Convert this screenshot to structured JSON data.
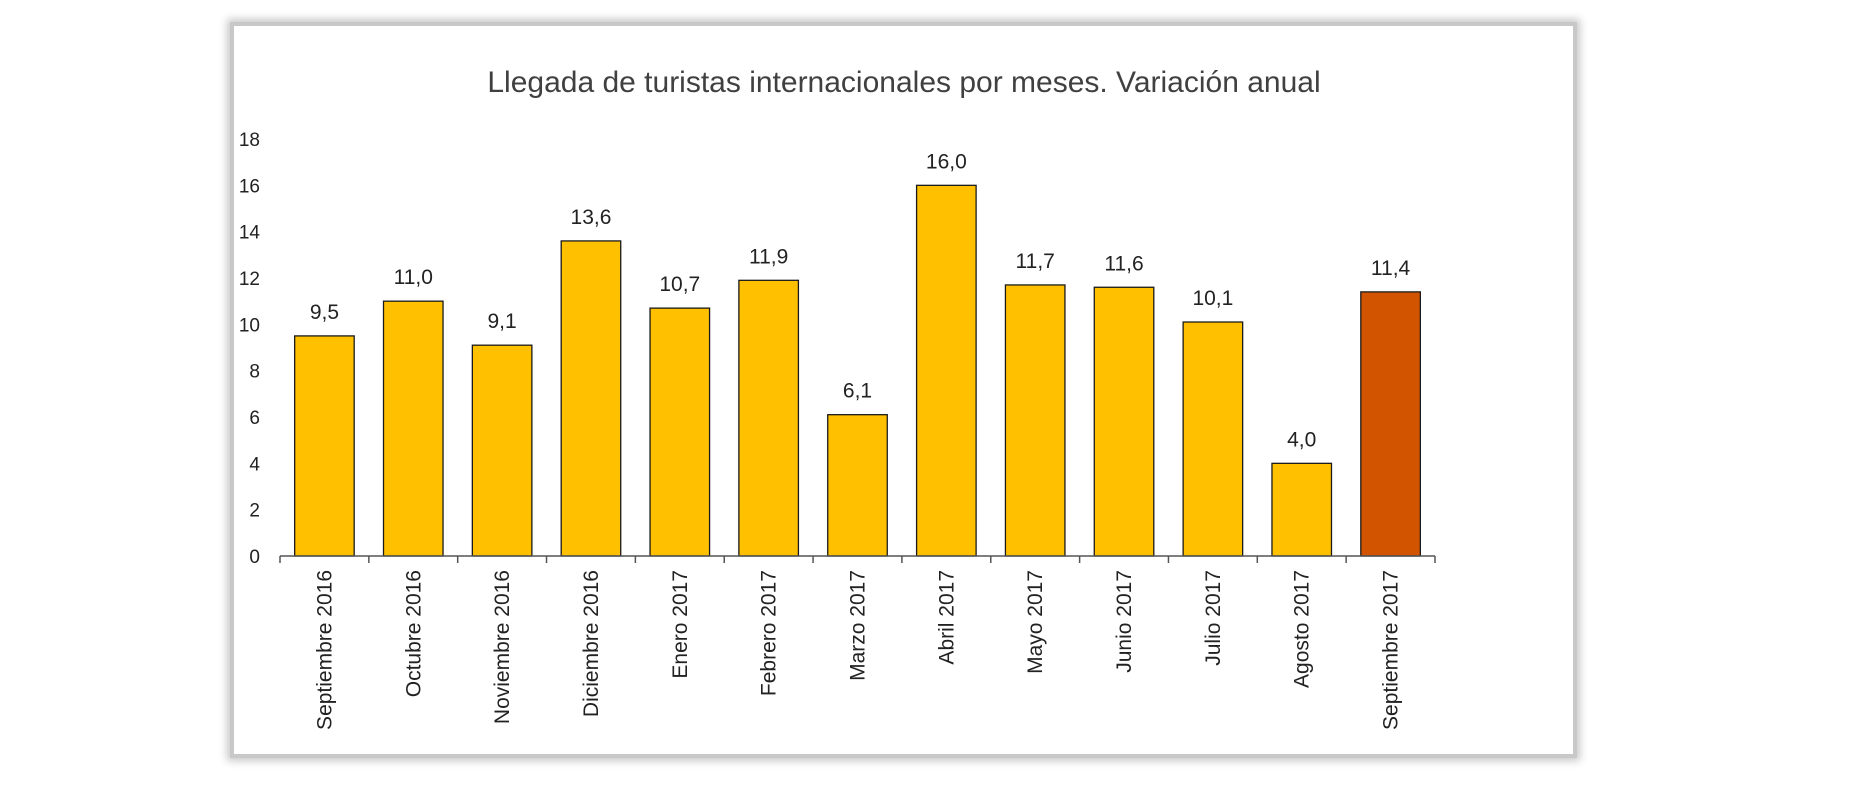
{
  "chart_data": {
    "type": "bar",
    "title": "Llegada de turistas internacionales por meses. Variación anual",
    "xlabel": "",
    "ylabel": "",
    "ylim": [
      0,
      18
    ],
    "yticks": [
      "0",
      "2",
      "4",
      "6",
      "8",
      "10",
      "12",
      "14",
      "16",
      "18"
    ],
    "categories": [
      "Septiembre 2016",
      "Octubre 2016",
      "Noviembre 2016",
      "Diciembre 2016",
      "Enero 2017",
      "Febrero 2017",
      "Marzo 2017",
      "Abril 2017",
      "Mayo 2017",
      "Junio 2017",
      "Julio 2017",
      "Agosto 2017",
      "Septiembre 2017"
    ],
    "values": [
      9.5,
      11.0,
      9.1,
      13.6,
      10.7,
      11.9,
      6.1,
      16.0,
      11.7,
      11.6,
      10.1,
      4.0,
      11.4
    ],
    "value_labels": [
      "9,5",
      "11,0",
      "9,1",
      "13,6",
      "10,7",
      "11,9",
      "6,1",
      "16,0",
      "11,7",
      "11,6",
      "10,1",
      "4,0",
      "11,4"
    ],
    "grid": false,
    "legend": "none",
    "colors": {
      "bar": "#FFC000",
      "highlight": "#D35400",
      "bar_stroke": "#1a1a1a",
      "axis": "#555555"
    },
    "highlight_index": 12
  }
}
